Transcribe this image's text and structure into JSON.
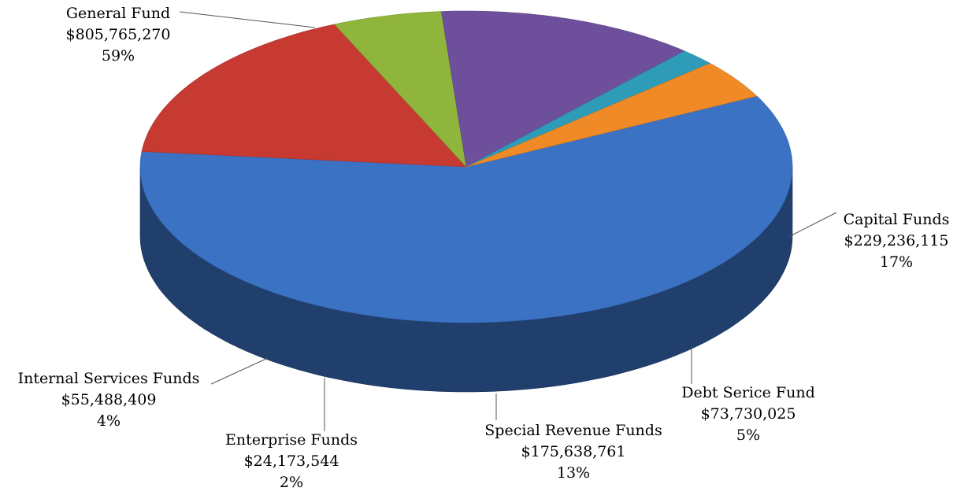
{
  "chart_data": {
    "type": "pie3d",
    "categories": [
      "General Fund",
      "Capital Funds",
      "Debt Serice Fund",
      "Special Revenue Funds",
      "Enterprise Funds",
      "Internal Services Funds"
    ],
    "values": [
      805765270,
      229236115,
      73730025,
      175638761,
      24173544,
      55488409
    ],
    "value_labels": [
      "$805,765,270",
      "$229,236,115",
      "$73,730,025",
      "$175,638,761",
      "$24,173,544",
      "$55,488,409"
    ],
    "percents": [
      59,
      17,
      5,
      13,
      2,
      4
    ],
    "percent_labels": [
      "59%",
      "17%",
      "5%",
      "13%",
      "2%",
      "4%"
    ],
    "colors": [
      "#3b72c4",
      "#c63a32",
      "#8fb53c",
      "#6d4f9c",
      "#2e9cb8",
      "#f08a26"
    ]
  }
}
